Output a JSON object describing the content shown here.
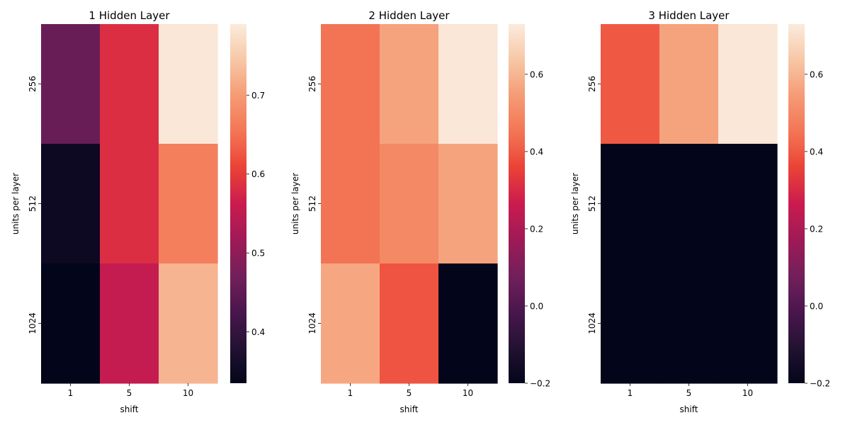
{
  "chart_data": [
    {
      "type": "heatmap",
      "title": "1 Hidden Layer",
      "xlabel": "shift",
      "ylabel": "units per layer",
      "x_categories": [
        "1",
        "5",
        "10"
      ],
      "y_categories": [
        "256",
        "512",
        "1024"
      ],
      "values": [
        [
          0.46,
          0.585,
          0.785
        ],
        [
          0.35,
          0.585,
          0.665
        ],
        [
          0.335,
          0.555,
          0.725
        ]
      ],
      "colorbar": {
        "min": 0.335,
        "max": 0.79,
        "ticks": [
          0.4,
          0.5,
          0.6,
          0.7
        ],
        "tick_labels": [
          "0.4",
          "0.5",
          "0.6",
          "0.7"
        ]
      }
    },
    {
      "type": "heatmap",
      "title": "2 Hidden Layer",
      "xlabel": "shift",
      "ylabel": "units per layer",
      "x_categories": [
        "1",
        "5",
        "10"
      ],
      "y_categories": [
        "256",
        "512",
        "1024"
      ],
      "values": [
        [
          0.45,
          0.56,
          0.72
        ],
        [
          0.45,
          0.5,
          0.56
        ],
        [
          0.57,
          0.39,
          -0.2
        ]
      ],
      "colorbar": {
        "min": -0.2,
        "max": 0.73,
        "ticks": [
          -0.2,
          0.0,
          0.2,
          0.4,
          0.6
        ],
        "tick_labels": [
          "−0.2",
          "0.0",
          "0.2",
          "0.4",
          "0.6"
        ]
      }
    },
    {
      "type": "heatmap",
      "title": "3 Hidden Layer",
      "xlabel": "shift",
      "ylabel": "units per layer",
      "x_categories": [
        "1",
        "5",
        "10"
      ],
      "y_categories": [
        "256",
        "512",
        "1024"
      ],
      "values": [
        [
          0.4,
          0.56,
          0.72
        ],
        [
          -0.2,
          -0.2,
          -0.2
        ],
        [
          -0.2,
          -0.2,
          -0.2
        ]
      ],
      "colorbar": {
        "min": -0.2,
        "max": 0.73,
        "ticks": [
          -0.2,
          0.0,
          0.2,
          0.4,
          0.6
        ],
        "tick_labels": [
          "−0.2",
          "0.0",
          "0.2",
          "0.4",
          "0.6"
        ]
      }
    }
  ]
}
